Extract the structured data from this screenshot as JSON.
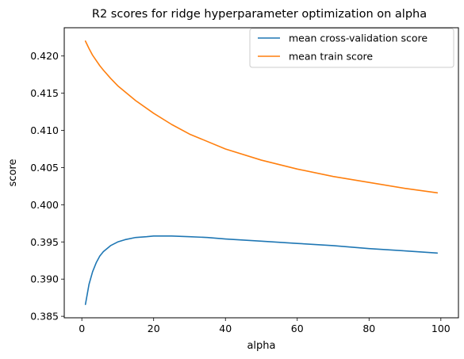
{
  "chart_data": {
    "type": "line",
    "title": "R2 scores for ridge hyperparameter optimization on alpha",
    "xlabel": "alpha",
    "ylabel": "score",
    "xlim": [
      -4.9,
      104.9
    ],
    "ylim": [
      0.3848,
      0.4238
    ],
    "xticks": [
      0,
      20,
      40,
      60,
      80,
      100
    ],
    "yticks": [
      0.385,
      0.39,
      0.395,
      0.4,
      0.405,
      0.41,
      0.415,
      0.42
    ],
    "grid": false,
    "legend_position": "top-right",
    "series": [
      {
        "name": "mean cross-validation score",
        "color": "#1f77b4",
        "x": [
          1,
          2,
          3,
          4,
          5,
          6,
          8,
          10,
          12,
          15,
          18,
          20,
          22,
          25,
          30,
          35,
          40,
          50,
          60,
          70,
          80,
          90,
          99
        ],
        "y": [
          0.3866,
          0.3893,
          0.391,
          0.3922,
          0.3931,
          0.3937,
          0.3945,
          0.395,
          0.3953,
          0.3956,
          0.3957,
          0.3958,
          0.3958,
          0.3958,
          0.3957,
          0.3956,
          0.3954,
          0.3951,
          0.3948,
          0.3945,
          0.3941,
          0.3938,
          0.3935
        ]
      },
      {
        "name": "mean train score",
        "color": "#ff7f0e",
        "x": [
          1,
          2,
          3,
          4,
          5,
          6,
          8,
          10,
          12,
          15,
          20,
          25,
          30,
          40,
          50,
          60,
          70,
          80,
          90,
          99
        ],
        "y": [
          0.422,
          0.421,
          0.4201,
          0.4194,
          0.4187,
          0.4181,
          0.417,
          0.416,
          0.4152,
          0.414,
          0.4123,
          0.4108,
          0.4095,
          0.4075,
          0.406,
          0.4048,
          0.4038,
          0.403,
          0.4022,
          0.4016
        ]
      }
    ]
  }
}
